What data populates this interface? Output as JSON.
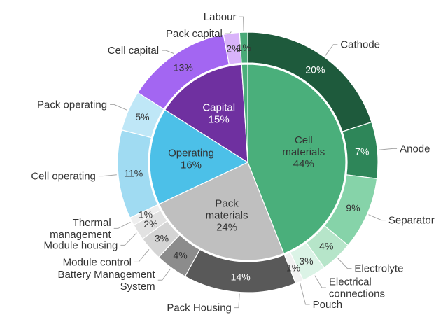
{
  "chart_data": {
    "type": "pie",
    "title": "",
    "inner": [
      {
        "name": "Cell\nmaterials",
        "value": 44,
        "label": "44%",
        "color": "#4aaf7b",
        "text_color": "#333333"
      },
      {
        "name": "Pack\nmaterials",
        "value": 24,
        "label": "24%",
        "color": "#bfbfbf",
        "text_color": "#333333"
      },
      {
        "name": "Operating",
        "value": 16,
        "label": "16%",
        "color": "#4cc0e8",
        "text_color": "#333333"
      },
      {
        "name": "Capital",
        "value": 15,
        "label": "15%",
        "color": "#6f30a0",
        "text_color": "#ffffff"
      },
      {
        "name": "",
        "value": 1,
        "label": "",
        "color": "#4aaf7b",
        "text_color": "#333333"
      }
    ],
    "outer": [
      {
        "name": "Cathode",
        "value": 20,
        "label": "20%",
        "color": "#1e5a3c",
        "text_color": "#ffffff"
      },
      {
        "name": "Anode",
        "value": 7,
        "label": "7%",
        "color": "#2e8659",
        "text_color": "#ffffff"
      },
      {
        "name": "Separator",
        "value": 9,
        "label": "9%",
        "color": "#86d3a9",
        "text_color": "#333333"
      },
      {
        "name": "Electrolyte",
        "value": 4,
        "label": "4%",
        "color": "#b6e5c9",
        "text_color": "#333333"
      },
      {
        "name": "Electrical\nconnections",
        "value": 3,
        "label": "3%",
        "color": "#dbf3e6",
        "text_color": "#333333"
      },
      {
        "name": "Pouch",
        "value": 1,
        "label": "1%",
        "color": "#f1f1f1",
        "text_color": "#333333"
      },
      {
        "name": "Pack Housing",
        "value": 14,
        "label": "14%",
        "color": "#595959",
        "text_color": "#ffffff"
      },
      {
        "name": "Battery Management\nSystem",
        "value": 4,
        "label": "4%",
        "color": "#8c8c8c",
        "text_color": "#333333"
      },
      {
        "name": "Module control",
        "value": 3,
        "label": "3%",
        "color": "#d4d4d4",
        "text_color": "#333333"
      },
      {
        "name": "Module housing",
        "value": 2,
        "label": "2%",
        "color": "#e2e2e2",
        "text_color": "#333333"
      },
      {
        "name": "Thermal\nmanagement",
        "value": 1,
        "label": "1%",
        "color": "#eeeeee",
        "text_color": "#333333"
      },
      {
        "name": "Cell operating",
        "value": 11,
        "label": "11%",
        "color": "#a0dbf2",
        "text_color": "#333333"
      },
      {
        "name": "Pack operating",
        "value": 5,
        "label": "5%",
        "color": "#bfe7f7",
        "text_color": "#333333"
      },
      {
        "name": "Cell capital",
        "value": 13,
        "label": "13%",
        "color": "#a366f2",
        "text_color": "#333333"
      },
      {
        "name": "Pack capital",
        "value": 2,
        "label": "2%",
        "color": "#d9b3fa",
        "text_color": "#333333"
      },
      {
        "name": "Labour",
        "value": 1,
        "label": "1%",
        "color": "#49a978",
        "text_color": "#333333"
      }
    ]
  }
}
